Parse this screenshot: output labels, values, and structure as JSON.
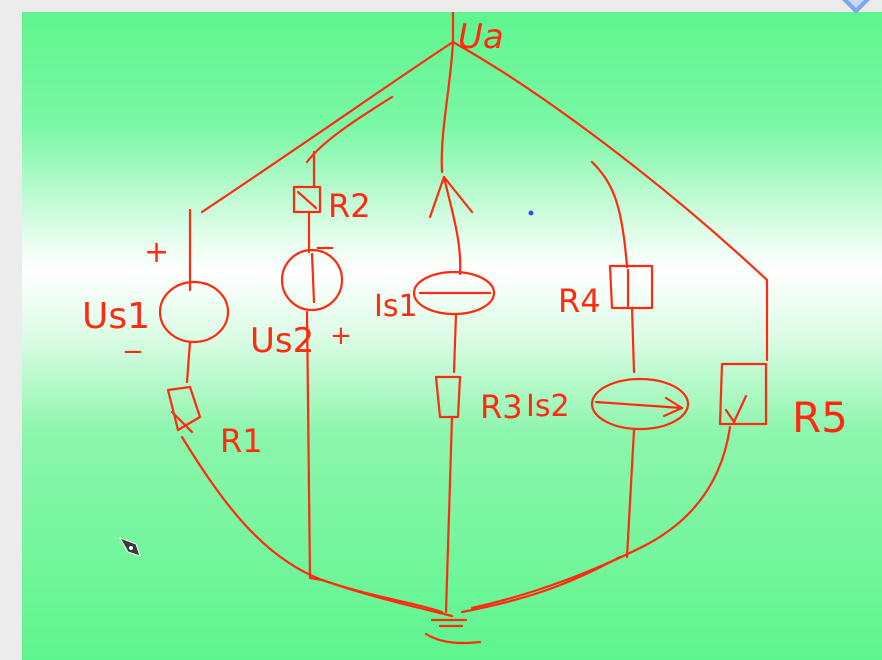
{
  "diagram": {
    "node_top_label": "Ua",
    "labels": {
      "us1": "Us1",
      "us2": "Us2",
      "r1": "R1",
      "r2": "R2",
      "r3": "R3",
      "r4": "R4",
      "r5": "R5",
      "is1": "Is1",
      "is2": "Is2",
      "plus": "+",
      "minus": "−"
    }
  },
  "colors": {
    "ink": "#ff2a10",
    "background_green": "#5ef58e",
    "pointer_dot": "#2a5bd7"
  },
  "icons": [
    "pen-cursor-icon",
    "app-corner-icon"
  ]
}
